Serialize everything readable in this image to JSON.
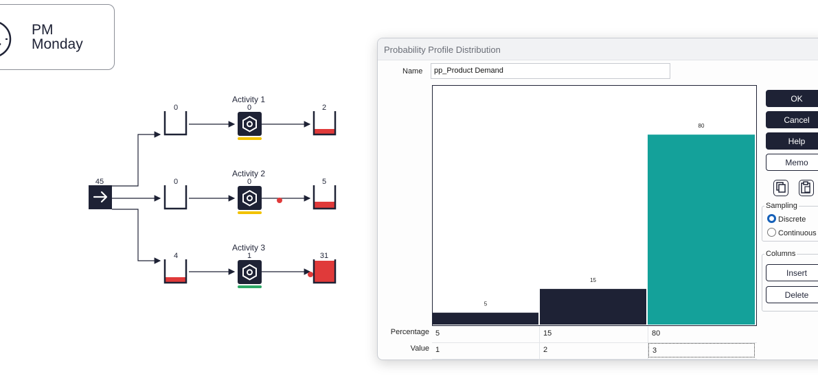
{
  "clock": {
    "period": "PM",
    "day": "Monday"
  },
  "flow": {
    "source_count": "45",
    "queues_in": [
      "0",
      "0",
      "4"
    ],
    "queues_out": [
      "2",
      "5",
      "31"
    ],
    "activities": [
      {
        "name": "Activity 1",
        "count": "0",
        "status_color": "#f2c200"
      },
      {
        "name": "Activity 2",
        "count": "0",
        "status_color": "#f2c200"
      },
      {
        "name": "Activity 3",
        "count": "1",
        "status_color": "#2ea866"
      }
    ],
    "queue_fill_color": "#e03a3a",
    "node_color": "#1e2235"
  },
  "dialog": {
    "title": "Probability Profile Distribution",
    "name_label": "Name",
    "name_value": "pp_Product Demand",
    "buttons": {
      "ok": "OK",
      "cancel": "Cancel",
      "help": "Help",
      "memo": "Memo",
      "insert": "Insert",
      "delete": "Delete"
    },
    "sampling": {
      "legend": "Sampling",
      "discrete": "Discrete",
      "continuous": "Continuous",
      "selected": "Discrete"
    },
    "columns_legend": "Columns",
    "row_labels": {
      "percentage": "Percentage",
      "value": "Value"
    }
  },
  "chart_data": {
    "type": "bar",
    "title": "",
    "xlabel": "",
    "ylabel": "",
    "ylim": [
      0,
      100
    ],
    "grid": false,
    "categories": [
      "1",
      "2",
      "3"
    ],
    "values": [
      5,
      15,
      80
    ],
    "bar_labels": [
      "5",
      "15",
      "80"
    ],
    "colors": [
      "#1e2235",
      "#1e2235",
      "#14a19a"
    ],
    "percentages": [
      "5",
      "15",
      "80"
    ],
    "value_row": [
      "1",
      "2",
      "3"
    ]
  }
}
